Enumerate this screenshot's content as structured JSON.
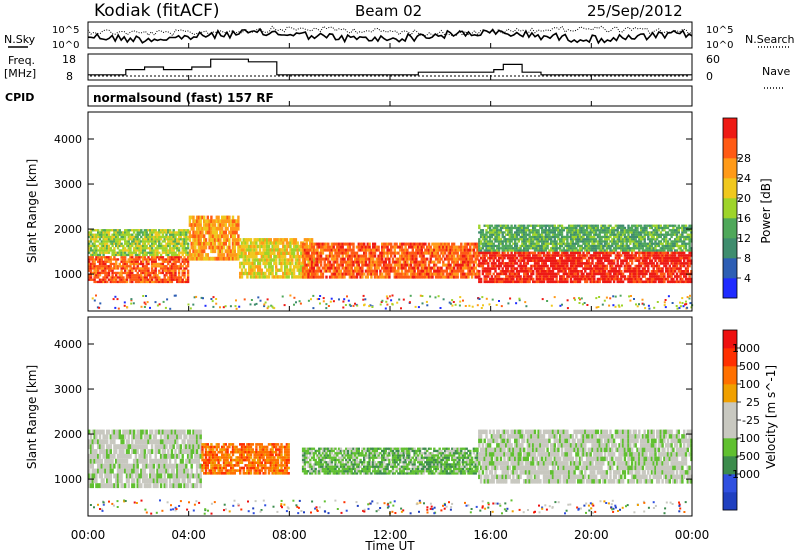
{
  "header": {
    "station": "Kodiak (fitACF)",
    "beam": "Beam 02",
    "date": "25/Sep/2012"
  },
  "noise_panel": {
    "left_label": "N.Sky",
    "right_label": "N.Search",
    "ticks_left": [
      "10^5",
      "10^0"
    ],
    "ticks_right": [
      "10^5",
      "10^0"
    ]
  },
  "freq_panel": {
    "label_line1": "Freq.",
    "label_line2": "[MHz]",
    "ticks_left": [
      "18",
      "8"
    ],
    "ticks_right": [
      "60",
      "0"
    ],
    "right_label": "Nave",
    "freq_mhz": [
      10,
      10,
      10,
      10,
      12,
      12,
      13,
      13,
      12,
      12,
      12,
      13,
      13,
      16,
      16,
      16,
      16,
      15,
      15,
      15,
      10,
      10,
      10,
      10,
      10,
      10,
      10,
      10,
      10,
      10,
      10,
      10,
      10,
      10,
      10,
      11,
      11,
      11,
      11,
      11,
      11,
      11,
      11,
      12,
      14,
      14,
      11,
      11,
      10,
      10,
      10,
      10,
      10,
      10,
      10,
      10,
      10,
      10,
      10,
      10,
      10,
      10,
      10,
      10
    ]
  },
  "cpid_panel": {
    "label": "CPID",
    "text": "normalsound (fast) 157 RF"
  },
  "chart_data": [
    {
      "type": "heatmap",
      "name": "Power",
      "ylabel": "Slant Range [km]",
      "colorbar_label": "Power [dB]",
      "colorbar_ticks": [
        "4",
        "8",
        "12",
        "16",
        "20",
        "24",
        "28"
      ],
      "colorbar_colors": [
        "#1f2bff",
        "#2d5eb4",
        "#3f8d6e",
        "#4fa85a",
        "#9ed42a",
        "#f0c81e",
        "#ff9a18",
        "#ff5a14",
        "#ee1a14"
      ],
      "xlim": [
        "00:00",
        "00:00"
      ],
      "ylim": [
        180,
        4600
      ],
      "yticks": [
        "1000",
        "2000",
        "3000",
        "4000"
      ],
      "bands": [
        {
          "t": [
            0,
            4
          ],
          "r": [
            800,
            1400
          ],
          "level": 7
        },
        {
          "t": [
            0,
            4
          ],
          "r": [
            1400,
            2000
          ],
          "level": 4
        },
        {
          "t": [
            4,
            6
          ],
          "r": [
            1300,
            2300
          ],
          "level": 6
        },
        {
          "t": [
            6,
            9
          ],
          "r": [
            900,
            1800
          ],
          "level": 5
        },
        {
          "t": [
            8.5,
            15.5
          ],
          "r": [
            900,
            1700
          ],
          "level": 7
        },
        {
          "t": [
            15.5,
            24
          ],
          "r": [
            800,
            1500
          ],
          "level": 8
        },
        {
          "t": [
            15.5,
            24
          ],
          "r": [
            1500,
            2100
          ],
          "level": 3
        }
      ]
    },
    {
      "type": "heatmap",
      "name": "Velocity",
      "ylabel": "Slant Range [km]",
      "colorbar_label": "Velocity [m s^-1]",
      "colorbar_ticks": [
        "1000",
        "500",
        "100",
        "25",
        "-25",
        "-100",
        "-500",
        "-1000"
      ],
      "colorbar_colors": [
        "#2040c0",
        "#3050e0",
        "#3c8c4c",
        "#60c030",
        "#c8c8c0",
        "#c8c8c0",
        "#f0a000",
        "#ff7000",
        "#ff3000",
        "#ee1010"
      ],
      "xlim": [
        "00:00",
        "00:00"
      ],
      "ylim": [
        180,
        4600
      ],
      "yticks": [
        "1000",
        "2000",
        "3000",
        "4000"
      ],
      "bands": [
        {
          "t": [
            0,
            4.5
          ],
          "r": [
            800,
            2100
          ],
          "level": 4
        },
        {
          "t": [
            4.5,
            8
          ],
          "r": [
            1100,
            1800
          ],
          "level": 7
        },
        {
          "t": [
            8.5,
            15.5
          ],
          "r": [
            1100,
            1700
          ],
          "level": 3
        },
        {
          "t": [
            15.5,
            24
          ],
          "r": [
            900,
            2100
          ],
          "level": 4
        }
      ]
    }
  ],
  "x_axis": {
    "ticks": [
      "00:00",
      "04:00",
      "08:00",
      "12:00",
      "16:00",
      "20:00",
      "00:00"
    ],
    "label": "Time UT"
  }
}
